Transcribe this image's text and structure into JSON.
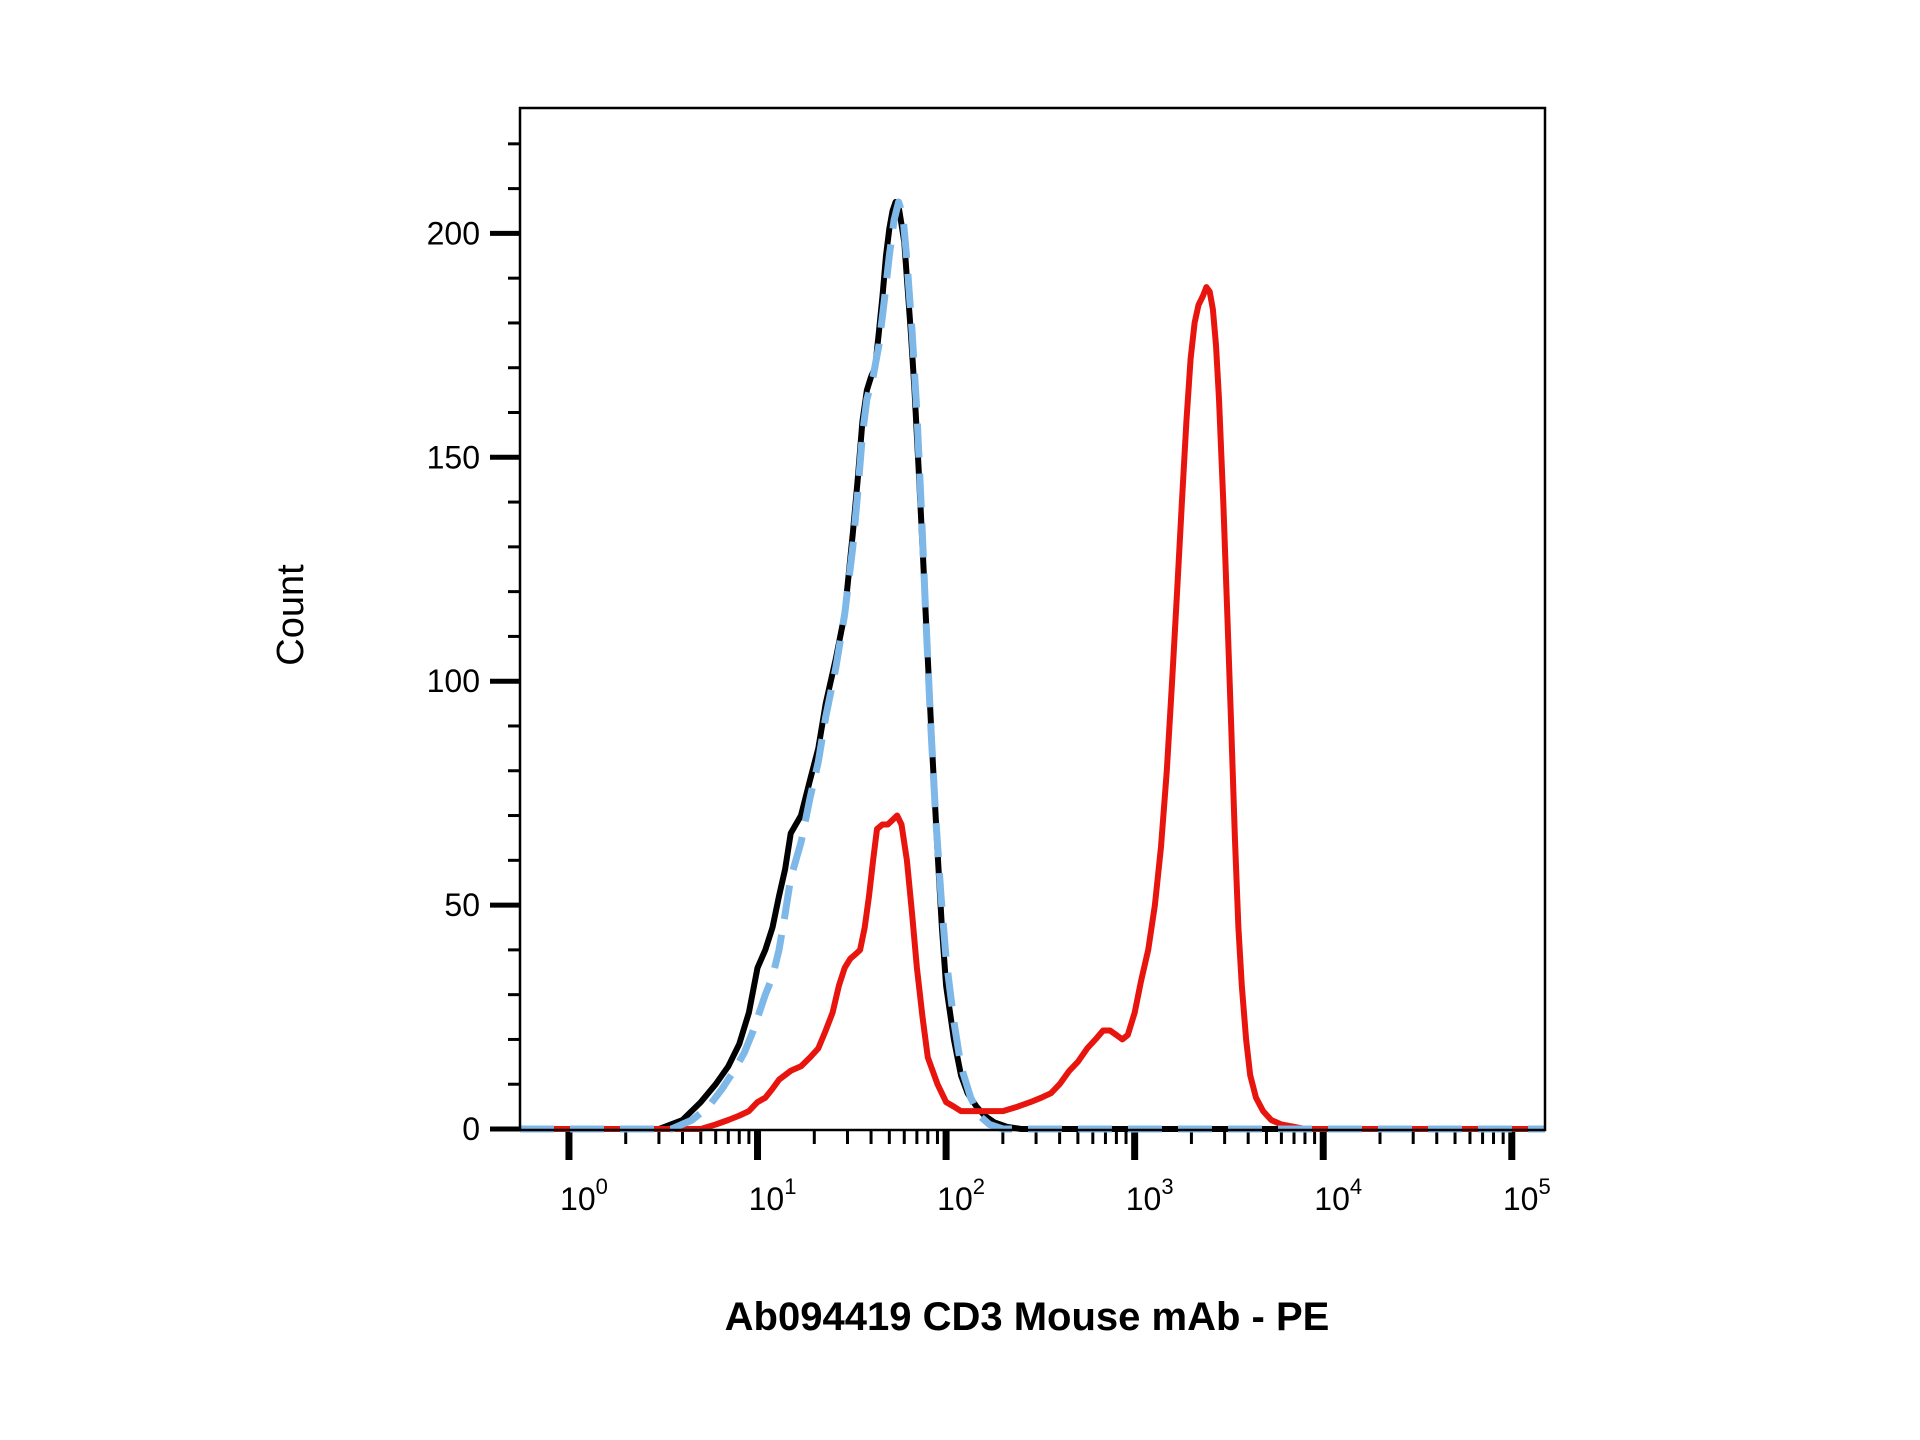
{
  "chart_data": {
    "type": "line",
    "title": "",
    "xlabel": "Ab094419 CD3 Mouse mAb - PE",
    "ylabel": "Count",
    "x_scale": "log10",
    "xlim": [
      0.55,
      150000
    ],
    "ylim": [
      0,
      228
    ],
    "grid": false,
    "legend": "none",
    "y_ticks": [
      {
        "value": 0,
        "label": "0"
      },
      {
        "value": 50,
        "label": "50"
      },
      {
        "value": 100,
        "label": "100"
      },
      {
        "value": 150,
        "label": "150"
      },
      {
        "value": 200,
        "label": "200"
      }
    ],
    "x_ticks": [
      {
        "value": 1,
        "base": "10",
        "exp": "0"
      },
      {
        "value": 10,
        "base": "10",
        "exp": "1"
      },
      {
        "value": 100,
        "base": "10",
        "exp": "2"
      },
      {
        "value": 1000,
        "base": "10",
        "exp": "3"
      },
      {
        "value": 10000,
        "base": "10",
        "exp": "4"
      },
      {
        "value": 100000,
        "base": "10",
        "exp": "5"
      }
    ],
    "series": [
      {
        "color": "#000000",
        "style": "solid",
        "points": [
          [
            0.55,
            0
          ],
          [
            3,
            0
          ],
          [
            4,
            2
          ],
          [
            5,
            6
          ],
          [
            6,
            10
          ],
          [
            7,
            14
          ],
          [
            8,
            19
          ],
          [
            9,
            26
          ],
          [
            10,
            36
          ],
          [
            11,
            40
          ],
          [
            12,
            45
          ],
          [
            13,
            52
          ],
          [
            14,
            58
          ],
          [
            15,
            66
          ],
          [
            17,
            70
          ],
          [
            19,
            78
          ],
          [
            21,
            85
          ],
          [
            23,
            95
          ],
          [
            26,
            105
          ],
          [
            29,
            115
          ],
          [
            32,
            133
          ],
          [
            34,
            145
          ],
          [
            36,
            158
          ],
          [
            38,
            165
          ],
          [
            40,
            168
          ],
          [
            42,
            170
          ],
          [
            44,
            178
          ],
          [
            46,
            186
          ],
          [
            48,
            195
          ],
          [
            50,
            201
          ],
          [
            52,
            205
          ],
          [
            54,
            207
          ],
          [
            56,
            206
          ],
          [
            58,
            202
          ],
          [
            60,
            198
          ],
          [
            62,
            190
          ],
          [
            65,
            178
          ],
          [
            68,
            165
          ],
          [
            72,
            145
          ],
          [
            76,
            125
          ],
          [
            80,
            105
          ],
          [
            85,
            82
          ],
          [
            90,
            62
          ],
          [
            95,
            45
          ],
          [
            100,
            32
          ],
          [
            110,
            20
          ],
          [
            120,
            12
          ],
          [
            130,
            8
          ],
          [
            145,
            5
          ],
          [
            160,
            3
          ],
          [
            180,
            1.5
          ],
          [
            210,
            0.5
          ],
          [
            250,
            0
          ],
          [
            150000,
            0
          ]
        ]
      },
      {
        "color": "#7db8e8",
        "style": "dashed",
        "points": [
          [
            0.55,
            0
          ],
          [
            3.5,
            0
          ],
          [
            4.5,
            2
          ],
          [
            5.5,
            5
          ],
          [
            6.5,
            9
          ],
          [
            7.5,
            13
          ],
          [
            8.5,
            17
          ],
          [
            9.5,
            22
          ],
          [
            11,
            30
          ],
          [
            12,
            34
          ],
          [
            13,
            40
          ],
          [
            14,
            48
          ],
          [
            15,
            56
          ],
          [
            17,
            64
          ],
          [
            19,
            74
          ],
          [
            21,
            82
          ],
          [
            23,
            92
          ],
          [
            26,
            103
          ],
          [
            29,
            115
          ],
          [
            32,
            130
          ],
          [
            34,
            142
          ],
          [
            36,
            155
          ],
          [
            38,
            163
          ],
          [
            41,
            168
          ],
          [
            44,
            175
          ],
          [
            47,
            185
          ],
          [
            50,
            195
          ],
          [
            53,
            203
          ],
          [
            56,
            207
          ],
          [
            59,
            204
          ],
          [
            62,
            194
          ],
          [
            66,
            178
          ],
          [
            70,
            160
          ],
          [
            74,
            138
          ],
          [
            78,
            115
          ],
          [
            83,
            90
          ],
          [
            88,
            70
          ],
          [
            94,
            52
          ],
          [
            100,
            38
          ],
          [
            110,
            24
          ],
          [
            120,
            14
          ],
          [
            135,
            7
          ],
          [
            150,
            3
          ],
          [
            170,
            1
          ],
          [
            200,
            0
          ],
          [
            150000,
            0
          ]
        ]
      },
      {
        "color": "#e8150e",
        "style": "solid",
        "points": [
          [
            0.55,
            0
          ],
          [
            5,
            0
          ],
          [
            6,
            1
          ],
          [
            7,
            2
          ],
          [
            8,
            3
          ],
          [
            9,
            4
          ],
          [
            10,
            6
          ],
          [
            11,
            7
          ],
          [
            12,
            9
          ],
          [
            13,
            11
          ],
          [
            15,
            13
          ],
          [
            17,
            14
          ],
          [
            19,
            16
          ],
          [
            21,
            18
          ],
          [
            23,
            22
          ],
          [
            25,
            26
          ],
          [
            27,
            32
          ],
          [
            29,
            36
          ],
          [
            31,
            38
          ],
          [
            33,
            39
          ],
          [
            35,
            40
          ],
          [
            37,
            45
          ],
          [
            39,
            52
          ],
          [
            41,
            60
          ],
          [
            43,
            67
          ],
          [
            46,
            68
          ],
          [
            49,
            68
          ],
          [
            52,
            69
          ],
          [
            55,
            70
          ],
          [
            58,
            68
          ],
          [
            62,
            60
          ],
          [
            66,
            48
          ],
          [
            70,
            36
          ],
          [
            75,
            25
          ],
          [
            80,
            16
          ],
          [
            90,
            10
          ],
          [
            100,
            6
          ],
          [
            110,
            5
          ],
          [
            120,
            4
          ],
          [
            140,
            4
          ],
          [
            160,
            4
          ],
          [
            200,
            4
          ],
          [
            240,
            5
          ],
          [
            280,
            6
          ],
          [
            320,
            7
          ],
          [
            360,
            8
          ],
          [
            400,
            10
          ],
          [
            450,
            13
          ],
          [
            500,
            15
          ],
          [
            560,
            18
          ],
          [
            620,
            20
          ],
          [
            680,
            22
          ],
          [
            740,
            22
          ],
          [
            800,
            21
          ],
          [
            860,
            20
          ],
          [
            920,
            21
          ],
          [
            1000,
            26
          ],
          [
            1080,
            33
          ],
          [
            1180,
            40
          ],
          [
            1280,
            50
          ],
          [
            1380,
            63
          ],
          [
            1480,
            80
          ],
          [
            1580,
            100
          ],
          [
            1680,
            120
          ],
          [
            1780,
            140
          ],
          [
            1880,
            158
          ],
          [
            1980,
            172
          ],
          [
            2080,
            180
          ],
          [
            2180,
            184
          ],
          [
            2300,
            186
          ],
          [
            2400,
            188
          ],
          [
            2500,
            187
          ],
          [
            2600,
            183
          ],
          [
            2700,
            175
          ],
          [
            2800,
            163
          ],
          [
            2950,
            140
          ],
          [
            3100,
            115
          ],
          [
            3250,
            90
          ],
          [
            3400,
            65
          ],
          [
            3550,
            45
          ],
          [
            3700,
            32
          ],
          [
            3900,
            20
          ],
          [
            4100,
            12
          ],
          [
            4400,
            7
          ],
          [
            4800,
            4
          ],
          [
            5300,
            2
          ],
          [
            6000,
            1
          ],
          [
            7000,
            0.5
          ],
          [
            8000,
            0
          ],
          [
            150000,
            0
          ]
        ]
      }
    ]
  }
}
